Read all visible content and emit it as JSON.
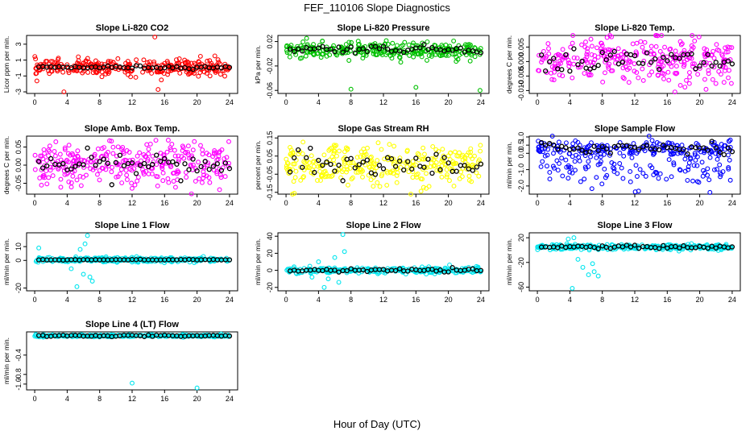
{
  "title": "FEF_110106  Slope Diagnostics",
  "xlabel": "Hour of Day (UTC)",
  "chart_data": [
    {
      "type": "scatter",
      "title": "Slope Li-820 CO2",
      "ylabel": "Licor ppm per min.",
      "color": "#ff0000",
      "x_ticks": [
        "0",
        "4",
        "8",
        "12",
        "16",
        "20",
        "24"
      ],
      "y_ticks": [
        "-3",
        "-1",
        "1",
        "3"
      ],
      "y_tick_values": [
        -3,
        -1,
        1,
        3
      ],
      "ylim": [
        -3.2,
        4.1
      ],
      "center": 0.1,
      "spread": 0.9,
      "outliers": [
        {
          "x": 14.8,
          "y": 3.9
        },
        {
          "x": 15.2,
          "y": -2.7
        },
        {
          "x": 3.6,
          "y": -3.0
        },
        {
          "x": 15.6,
          "y": -1.5
        }
      ],
      "black_center": 0.1,
      "black_spread": 0.15
    },
    {
      "type": "scatter",
      "title": "Slope Li-820 Pressure",
      "ylabel": "kPa per min.",
      "color": "#00c000",
      "x_ticks": [
        "0",
        "4",
        "8",
        "12",
        "16",
        "20",
        "24"
      ],
      "y_ticks": [
        "-0.06",
        "-0.02",
        "0.02"
      ],
      "y_tick_values": [
        -0.06,
        -0.02,
        0.02
      ],
      "ylim": [
        -0.065,
        0.03
      ],
      "center": 0.005,
      "spread": 0.012,
      "outliers": [
        {
          "x": 8,
          "y": -0.058
        },
        {
          "x": 16,
          "y": -0.055
        },
        {
          "x": 23.9,
          "y": -0.06
        }
      ],
      "black_center": 0.008,
      "black_spread": 0.005
    },
    {
      "type": "scatter",
      "title": "Slope Li-820 Temp.",
      "ylabel": "degrees C per min.",
      "color": "#ff00ff",
      "x_ticks": [
        "0",
        "4",
        "8",
        "12",
        "16",
        "20",
        "24"
      ],
      "y_ticks": [
        "-0.010",
        "-0.005",
        "0.000",
        "0.005"
      ],
      "y_tick_values": [
        -0.01,
        -0.005,
        0,
        0.005
      ],
      "ylim": [
        -0.011,
        0.009
      ],
      "center": 0.0005,
      "spread": 0.007,
      "outliers": [],
      "black_center": 0.0,
      "black_spread": 0.004
    },
    {
      "type": "scatter",
      "title": "Slope Amb. Box Temp.",
      "ylabel": "degrees C per min.",
      "color": "#ff00ff",
      "x_ticks": [
        "0",
        "4",
        "8",
        "12",
        "16",
        "20",
        "24"
      ],
      "y_ticks": [
        "-0.05",
        "0.00",
        "0.05"
      ],
      "y_tick_values": [
        -0.05,
        0,
        0.05
      ],
      "ylim": [
        -0.08,
        0.08
      ],
      "center": 0.0,
      "spread": 0.055,
      "outliers": [],
      "black_center": 0.0,
      "black_spread": 0.03
    },
    {
      "type": "scatter",
      "title": "Slope Gas Stream RH",
      "ylabel": "percent per min.",
      "color": "#ffff00",
      "x_ticks": [
        "0",
        "4",
        "8",
        "12",
        "16",
        "20",
        "24"
      ],
      "y_ticks": [
        "-0.15",
        "-0.05",
        "0.05",
        "0.15"
      ],
      "y_tick_values": [
        -0.15,
        -0.05,
        0.05,
        0.15
      ],
      "ylim": [
        -0.16,
        0.16
      ],
      "center": 0.0,
      "spread": 0.1,
      "outliers": [],
      "black_center": 0.0,
      "black_spread": 0.06
    },
    {
      "type": "scatter",
      "title": "Slope Sample Flow",
      "ylabel": "ml/min per min.",
      "color": "#0000ff",
      "x_ticks": [
        "0",
        "4",
        "8",
        "12",
        "16",
        "20",
        "24"
      ],
      "y_ticks": [
        "-2.0",
        "-1.0",
        "0.0",
        "0.5",
        "1.0"
      ],
      "y_tick_values": [
        -2,
        -1,
        0,
        0.5,
        1
      ],
      "ylim": [
        -2.5,
        1.05
      ],
      "center": 0.2,
      "spread": 0.5,
      "outliers": [],
      "black_center": 0.35,
      "black_spread": 0.3,
      "lower_band": -1.2
    },
    {
      "type": "scatter",
      "title": "Slope Line 1 Flow",
      "ylabel": "ml/min per min.",
      "color": "#00e5ee",
      "x_ticks": [
        "0",
        "4",
        "8",
        "12",
        "16",
        "20",
        "24"
      ],
      "y_ticks": [
        "-20",
        "0",
        "10"
      ],
      "y_tick_values": [
        -20,
        0,
        10
      ],
      "ylim": [
        -22,
        20
      ],
      "center": 0.5,
      "spread": 1.5,
      "outliers": [
        {
          "x": 6.5,
          "y": 18
        },
        {
          "x": 6.8,
          "y": -12
        },
        {
          "x": 5.2,
          "y": -19
        },
        {
          "x": 7.1,
          "y": -15
        },
        {
          "x": 6.2,
          "y": 12
        },
        {
          "x": 5.6,
          "y": 8
        },
        {
          "x": 0.5,
          "y": 9
        },
        {
          "x": 4.5,
          "y": -6
        },
        {
          "x": 6.0,
          "y": -10
        }
      ],
      "black_center": 0.5,
      "black_spread": 0.2
    },
    {
      "type": "scatter",
      "title": "Slope Line 2 Flow",
      "ylabel": "ml/min per min.",
      "color": "#00e5ee",
      "x_ticks": [
        "0",
        "4",
        "8",
        "12",
        "16",
        "20",
        "24"
      ],
      "y_ticks": [
        "-20",
        "0",
        "20",
        "40"
      ],
      "y_tick_values": [
        -20,
        0,
        20,
        40
      ],
      "ylim": [
        -24,
        44
      ],
      "center": 0.0,
      "spread": 3.0,
      "outliers": [
        {
          "x": 7.0,
          "y": 42
        },
        {
          "x": 4.7,
          "y": -20
        },
        {
          "x": 6.5,
          "y": -14
        },
        {
          "x": 4.0,
          "y": 10
        },
        {
          "x": 6.0,
          "y": 15
        },
        {
          "x": 5.2,
          "y": -10
        },
        {
          "x": 7.2,
          "y": 22
        },
        {
          "x": 3.2,
          "y": -8
        }
      ],
      "black_center": 0.0,
      "black_spread": 1.5
    },
    {
      "type": "scatter",
      "title": "Slope Line 3 Flow",
      "ylabel": "ml/min per min.",
      "color": "#00e5ee",
      "x_ticks": [
        "0",
        "4",
        "8",
        "12",
        "16",
        "20",
        "24"
      ],
      "y_ticks": [
        "-60",
        "-20",
        "20"
      ],
      "y_tick_values": [
        -60,
        -20,
        20
      ],
      "ylim": [
        -66,
        28
      ],
      "center": 5,
      "spread": 4,
      "outliers": [
        {
          "x": 4.3,
          "y": -62
        },
        {
          "x": 5.6,
          "y": -28
        },
        {
          "x": 6.3,
          "y": -40
        },
        {
          "x": 7.0,
          "y": -35
        },
        {
          "x": 7.5,
          "y": -42
        },
        {
          "x": 4.5,
          "y": 20
        },
        {
          "x": 5.0,
          "y": -15
        },
        {
          "x": 3.8,
          "y": 18
        },
        {
          "x": 6.8,
          "y": -22
        }
      ],
      "black_center": 5,
      "black_spread": 2
    },
    {
      "type": "scatter",
      "title": "Slope Line 4 (LT) Flow",
      "ylabel": "ml/min per min.",
      "color": "#00e5ee",
      "x_ticks": [
        "0",
        "4",
        "8",
        "12",
        "16",
        "20",
        "24"
      ],
      "y_ticks": [
        "-1.0",
        "-0.8",
        "-0.4"
      ],
      "y_tick_values": [
        -1.0,
        -0.8,
        -0.4
      ],
      "ylim": [
        -1.12,
        0.08
      ],
      "center": 0.0,
      "spread": 0.02,
      "outliers": [
        {
          "x": 12.0,
          "y": -0.98
        },
        {
          "x": 20.0,
          "y": -1.08
        }
      ],
      "black_center": 0.0,
      "black_spread": 0.015
    }
  ]
}
